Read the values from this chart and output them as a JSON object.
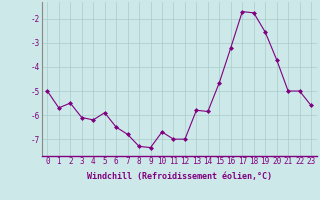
{
  "x": [
    0,
    1,
    2,
    3,
    4,
    5,
    6,
    7,
    8,
    9,
    10,
    11,
    12,
    13,
    14,
    15,
    16,
    17,
    18,
    19,
    20,
    21,
    22,
    23
  ],
  "y": [
    -5.0,
    -5.7,
    -5.5,
    -6.1,
    -6.2,
    -5.9,
    -6.5,
    -6.8,
    -7.3,
    -7.35,
    -6.7,
    -7.0,
    -7.0,
    -5.8,
    -5.85,
    -4.65,
    -3.2,
    -1.7,
    -1.75,
    -2.55,
    -3.7,
    -5.0,
    -5.0,
    -5.6
  ],
  "line_color": "#800080",
  "marker": "D",
  "marker_size": 2,
  "bg_color": "#cce8e8",
  "grid_color": "#aacccc",
  "xlabel": "Windchill (Refroidissement éolien,°C)",
  "xlabel_fontsize": 6.0,
  "tick_fontsize": 5.5,
  "xlim": [
    -0.5,
    23.5
  ],
  "ylim": [
    -7.7,
    -1.3
  ],
  "yticks": [
    -7,
    -6,
    -5,
    -4,
    -3,
    -2
  ],
  "xticks": [
    0,
    1,
    2,
    3,
    4,
    5,
    6,
    7,
    8,
    9,
    10,
    11,
    12,
    13,
    14,
    15,
    16,
    17,
    18,
    19,
    20,
    21,
    22,
    23
  ]
}
